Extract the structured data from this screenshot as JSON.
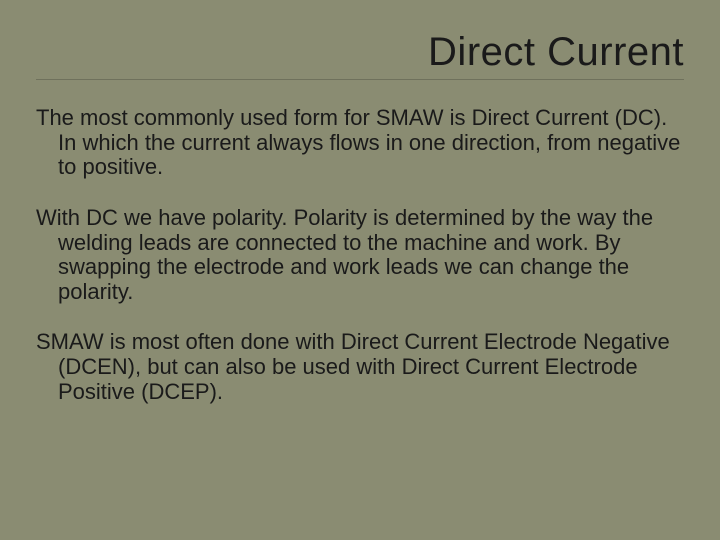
{
  "slide": {
    "title": "Direct Current",
    "paragraphs": [
      "The most commonly used form for SMAW is Direct Current (DC). In which the current always flows in one direction, from negative to positive.",
      "With DC we have polarity. Polarity is determined by the way the welding leads are connected to the machine and work. By swapping the electrode and work leads we can change the polarity.",
      "SMAW is most often done with Direct Current Electrode Negative (DCEN), but can also be used with Direct Current Electrode Positive (DCEP)."
    ],
    "background_color": "#8a8c72",
    "text_color": "#1a1a1a",
    "title_fontsize": 40,
    "body_fontsize": 22,
    "divider_color": "#6f715c"
  }
}
